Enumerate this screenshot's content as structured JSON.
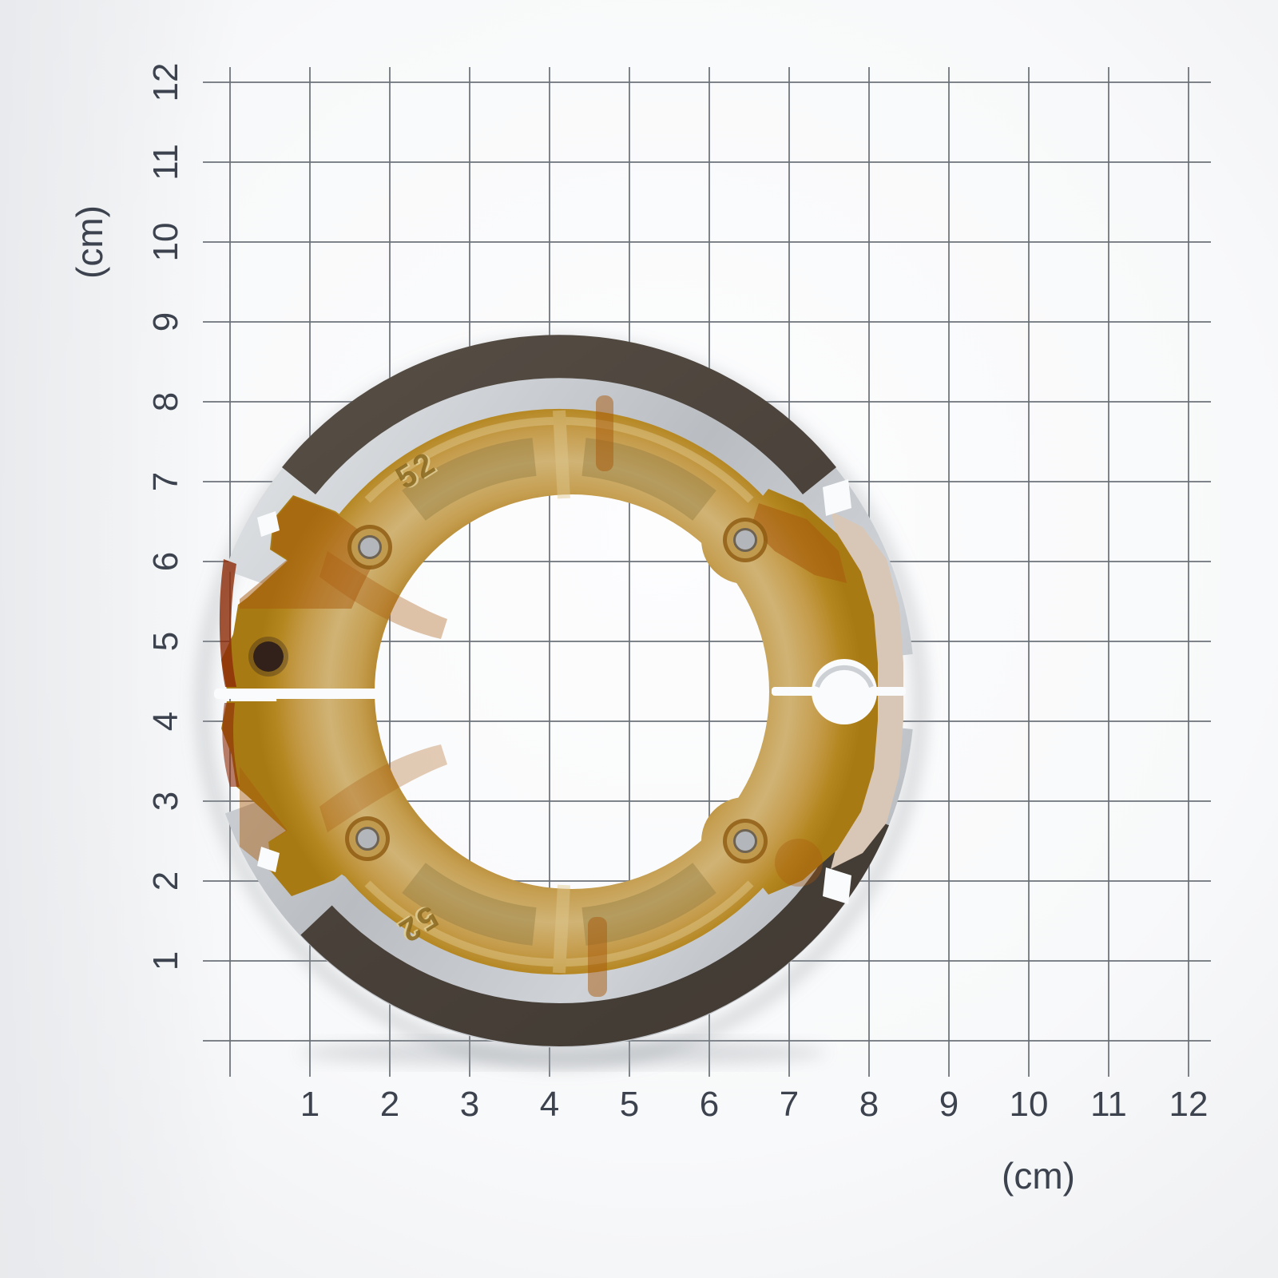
{
  "scene": {
    "description": "Product photo of a pair of motorcycle drum brake shoes laid on centimeter grid paper",
    "object": "brake-shoe-pair"
  },
  "axes": {
    "x_labels": [
      "1",
      "2",
      "3",
      "4",
      "5",
      "6",
      "7",
      "8",
      "9",
      "10",
      "11",
      "12"
    ],
    "y_labels": [
      "1",
      "2",
      "3",
      "4",
      "5",
      "6",
      "7",
      "8",
      "9",
      "10",
      "11",
      "12"
    ],
    "unit_bottom": "(cm)",
    "unit_left": "(cm)"
  },
  "part": {
    "marking_top": "52",
    "marking_bottom": "52"
  },
  "colors": {
    "paper": "#fafbfc",
    "grid_line": "#696e75",
    "label_text": "#3d434e",
    "pad_dark": "#4b433b",
    "silver": "#c6cacf",
    "gold_mid": "#c9a85e",
    "gold_amber": "#b07c1e",
    "rust": "#a85a0c",
    "rust_dark": "#8c2a06",
    "hole_gray": "#b3b7bb",
    "dot_black": "#31211a",
    "pale_edge": "#d8c7b6",
    "marking_engraved": "#8a691f",
    "marking_highlight": "#e2cf96"
  }
}
